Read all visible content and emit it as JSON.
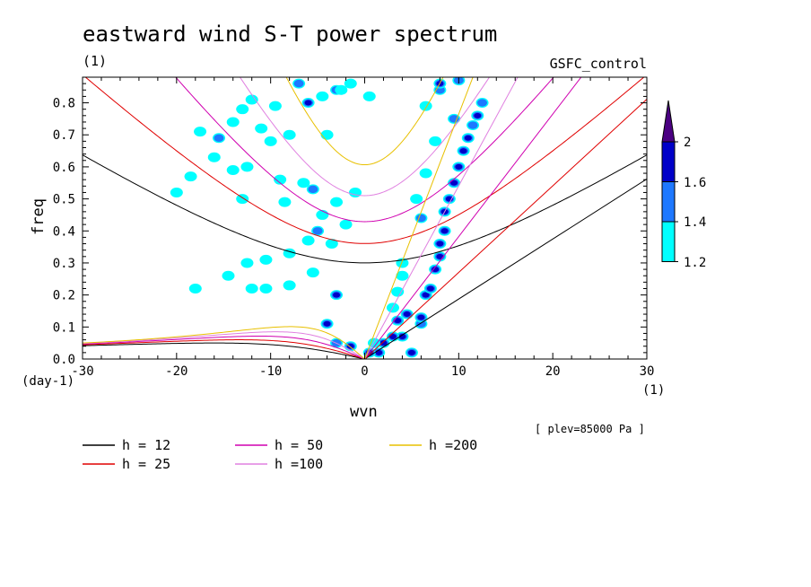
{
  "chart_data": {
    "type": "contour",
    "title": "eastward wind S-T power spectrum",
    "subtitle_left": "(1)",
    "subtitle_right": "GSFC_control",
    "xlabel": "wvn",
    "ylabel": "freq",
    "x_unit": "(1)",
    "y_unit": "(day-1)",
    "xlim": [
      -30,
      30
    ],
    "ylim": [
      0,
      0.88
    ],
    "xticks": [
      -30,
      -20,
      -10,
      0,
      10,
      20,
      30
    ],
    "yticks": [
      0.0,
      0.1,
      0.2,
      0.3,
      0.4,
      0.5,
      0.6,
      0.7,
      0.8
    ],
    "xtick_labels": [
      "-30",
      "-20",
      "-10",
      "0",
      "10",
      "20",
      "30"
    ],
    "ytick_labels": [
      "0.0",
      "0.1",
      "0.2",
      "0.3",
      "0.4",
      "0.5",
      "0.6",
      "0.7",
      "0.8"
    ],
    "pressure_note": "[ plev=85000 Pa ]",
    "colorbar": {
      "levels": [
        1.2,
        1.4,
        1.6,
        2
      ],
      "labels": [
        "1.2",
        "1.4",
        "1.6",
        "2"
      ],
      "colors": [
        "#00ffff",
        "#1e78ff",
        "#0000c8",
        "#4b0082"
      ]
    },
    "dispersion_curves": [
      {
        "name": "h = 12",
        "h": 12,
        "color": "#000000"
      },
      {
        "name": "h = 25",
        "h": 25,
        "color": "#e00000"
      },
      {
        "name": "h = 50",
        "h": 50,
        "color": "#d000b0"
      },
      {
        "name": "h =100",
        "h": 100,
        "color": "#e080e0"
      },
      {
        "name": "h =200",
        "h": 200,
        "color": "#e8c000"
      }
    ],
    "contour_blobs": [
      {
        "x": -4.5,
        "y": 0.82,
        "level": 1
      },
      {
        "x": -3.0,
        "y": 0.84,
        "level": 2
      },
      {
        "x": -2.5,
        "y": 0.84,
        "level": 1
      },
      {
        "x": -7.0,
        "y": 0.86,
        "level": 2
      },
      {
        "x": -9.5,
        "y": 0.79,
        "level": 1
      },
      {
        "x": -12.0,
        "y": 0.81,
        "level": 1
      },
      {
        "x": -13.0,
        "y": 0.78,
        "level": 1
      },
      {
        "x": -6.0,
        "y": 0.8,
        "level": 3
      },
      {
        "x": -1.5,
        "y": 0.86,
        "level": 1
      },
      {
        "x": 0.5,
        "y": 0.82,
        "level": 1
      },
      {
        "x": -11.0,
        "y": 0.72,
        "level": 1
      },
      {
        "x": -14.0,
        "y": 0.74,
        "level": 1
      },
      {
        "x": -15.5,
        "y": 0.69,
        "level": 2
      },
      {
        "x": -17.5,
        "y": 0.71,
        "level": 1
      },
      {
        "x": -10.0,
        "y": 0.68,
        "level": 1
      },
      {
        "x": -8.0,
        "y": 0.7,
        "level": 1
      },
      {
        "x": -4.0,
        "y": 0.7,
        "level": 1
      },
      {
        "x": -16.0,
        "y": 0.63,
        "level": 1
      },
      {
        "x": -18.5,
        "y": 0.57,
        "level": 1
      },
      {
        "x": -14.0,
        "y": 0.59,
        "level": 1
      },
      {
        "x": -12.5,
        "y": 0.6,
        "level": 1
      },
      {
        "x": -9.0,
        "y": 0.56,
        "level": 1
      },
      {
        "x": -6.5,
        "y": 0.55,
        "level": 1
      },
      {
        "x": -20.0,
        "y": 0.52,
        "level": 1
      },
      {
        "x": -13.0,
        "y": 0.5,
        "level": 1
      },
      {
        "x": -8.5,
        "y": 0.49,
        "level": 1
      },
      {
        "x": -5.5,
        "y": 0.53,
        "level": 2
      },
      {
        "x": -3.0,
        "y": 0.49,
        "level": 1
      },
      {
        "x": -1.0,
        "y": 0.52,
        "level": 1
      },
      {
        "x": -4.5,
        "y": 0.45,
        "level": 1
      },
      {
        "x": -2.0,
        "y": 0.42,
        "level": 1
      },
      {
        "x": -5.0,
        "y": 0.4,
        "level": 2
      },
      {
        "x": -6.0,
        "y": 0.37,
        "level": 1
      },
      {
        "x": -3.5,
        "y": 0.36,
        "level": 1
      },
      {
        "x": -8.0,
        "y": 0.33,
        "level": 1
      },
      {
        "x": -10.5,
        "y": 0.31,
        "level": 1
      },
      {
        "x": -12.5,
        "y": 0.3,
        "level": 1
      },
      {
        "x": -5.5,
        "y": 0.27,
        "level": 1
      },
      {
        "x": -14.5,
        "y": 0.26,
        "level": 1
      },
      {
        "x": -18.0,
        "y": 0.22,
        "level": 1
      },
      {
        "x": -12.0,
        "y": 0.22,
        "level": 1
      },
      {
        "x": -10.5,
        "y": 0.22,
        "level": 1
      },
      {
        "x": -8.0,
        "y": 0.23,
        "level": 1
      },
      {
        "x": -3.0,
        "y": 0.2,
        "level": 3
      },
      {
        "x": -4.0,
        "y": 0.11,
        "level": 3
      },
      {
        "x": -3.0,
        "y": 0.05,
        "level": 2
      },
      {
        "x": -1.5,
        "y": 0.04,
        "level": 3
      },
      {
        "x": 5.0,
        "y": 0.02,
        "level": 3
      },
      {
        "x": 6.0,
        "y": 0.11,
        "level": 2
      },
      {
        "x": 6.0,
        "y": 0.13,
        "level": 3
      },
      {
        "x": 6.5,
        "y": 0.2,
        "level": 3
      },
      {
        "x": 7.0,
        "y": 0.22,
        "level": 3
      },
      {
        "x": 7.5,
        "y": 0.28,
        "level": 3
      },
      {
        "x": 8.0,
        "y": 0.32,
        "level": 3
      },
      {
        "x": 8.0,
        "y": 0.36,
        "level": 3
      },
      {
        "x": 8.5,
        "y": 0.4,
        "level": 3
      },
      {
        "x": 8.5,
        "y": 0.46,
        "level": 3
      },
      {
        "x": 9.0,
        "y": 0.5,
        "level": 3
      },
      {
        "x": 9.5,
        "y": 0.55,
        "level": 3
      },
      {
        "x": 10.0,
        "y": 0.6,
        "level": 3
      },
      {
        "x": 10.5,
        "y": 0.65,
        "level": 3
      },
      {
        "x": 11.0,
        "y": 0.69,
        "level": 3
      },
      {
        "x": 11.5,
        "y": 0.73,
        "level": 2
      },
      {
        "x": 12.0,
        "y": 0.76,
        "level": 3
      },
      {
        "x": 12.5,
        "y": 0.8,
        "level": 2
      },
      {
        "x": 9.5,
        "y": 0.75,
        "level": 2
      },
      {
        "x": 8.0,
        "y": 0.84,
        "level": 2
      },
      {
        "x": 8.0,
        "y": 0.86,
        "level": 3
      },
      {
        "x": 10.0,
        "y": 0.87,
        "level": 2
      },
      {
        "x": 6.5,
        "y": 0.79,
        "level": 1
      },
      {
        "x": 7.5,
        "y": 0.68,
        "level": 1
      },
      {
        "x": 6.5,
        "y": 0.58,
        "level": 1
      },
      {
        "x": 5.5,
        "y": 0.5,
        "level": 1
      },
      {
        "x": 6.0,
        "y": 0.44,
        "level": 2
      },
      {
        "x": 4.0,
        "y": 0.3,
        "level": 1
      },
      {
        "x": 4.0,
        "y": 0.26,
        "level": 1
      },
      {
        "x": 3.5,
        "y": 0.21,
        "level": 1
      },
      {
        "x": 3.0,
        "y": 0.16,
        "level": 1
      },
      {
        "x": 4.0,
        "y": 0.07,
        "level": 3
      },
      {
        "x": 3.0,
        "y": 0.07,
        "level": 3
      },
      {
        "x": 2.0,
        "y": 0.05,
        "level": 3
      },
      {
        "x": 1.5,
        "y": 0.02,
        "level": 3
      },
      {
        "x": 0.5,
        "y": 0.02,
        "level": 3
      },
      {
        "x": 4.5,
        "y": 0.14,
        "level": 3
      },
      {
        "x": 3.5,
        "y": 0.12,
        "level": 3
      },
      {
        "x": 1.0,
        "y": 0.05,
        "level": 1
      }
    ]
  },
  "legend": {
    "entries": [
      "h = 12",
      "h = 25",
      "h = 50",
      "h =100",
      "h =200"
    ]
  }
}
